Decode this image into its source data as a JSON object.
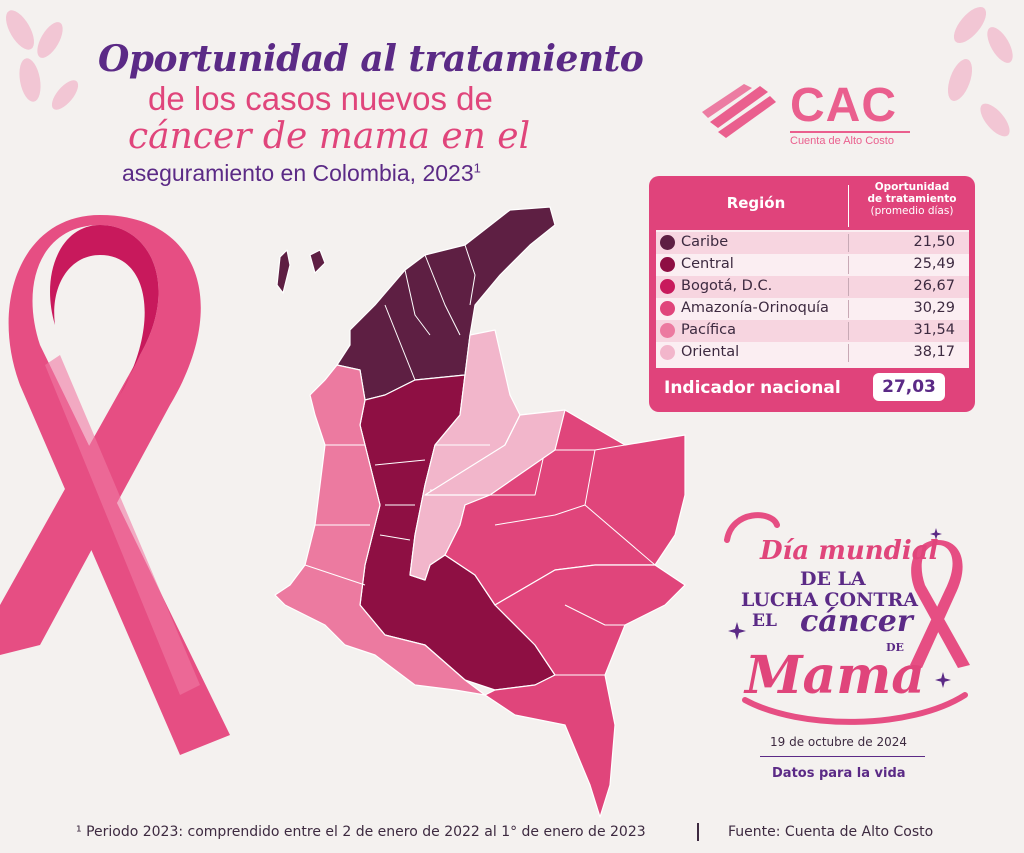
{
  "title": {
    "line1": "Oportunidad al tratamiento",
    "line2": "de los casos nuevos de",
    "line3": "cáncer de mama en el",
    "line4": "aseguramiento en Colombia, 2023",
    "line4_sup": "1"
  },
  "logo": {
    "text": "CAC",
    "subtitle": "Cuenta de Alto Costo"
  },
  "table": {
    "header_region": "Región",
    "header_value_line1": "Oportunidad",
    "header_value_line2": "de tratamiento",
    "header_value_line3": "(promedio días)",
    "rows": [
      {
        "region": "Caribe",
        "value": "21,50",
        "color": "#5e1f43"
      },
      {
        "region": "Central",
        "value": "25,49",
        "color": "#8e0f43"
      },
      {
        "region": "Bogotá, D.C.",
        "value": "26,67",
        "color": "#c8195c"
      },
      {
        "region": "Amazonía-Orinoquía",
        "value": "30,29",
        "color": "#e0457b"
      },
      {
        "region": "Pacífica",
        "value": "31,54",
        "color": "#ec7aa0"
      },
      {
        "region": "Oriental",
        "value": "38,17",
        "color": "#f2b6cb"
      }
    ],
    "national_label": "Indicador nacional",
    "national_value": "27,03"
  },
  "badge": {
    "line1": "Día mundial",
    "line2": "DE LA",
    "line3": "LUCHA CONTRA",
    "line4": "EL",
    "line5": "cáncer",
    "line6": "DE",
    "line7": "Mama",
    "date": "19 de octubre de 2024",
    "tagline": "Datos para la vida"
  },
  "footer": {
    "note": "¹ Periodo 2023: comprendido entre el 2 de enero de 2022 al 1° de enero de 2023",
    "source": "Fuente: Cuenta de Alto Costo"
  },
  "colors": {
    "accent": "#e0437b",
    "purple": "#5b2a86",
    "background": "#f4f1ef"
  }
}
